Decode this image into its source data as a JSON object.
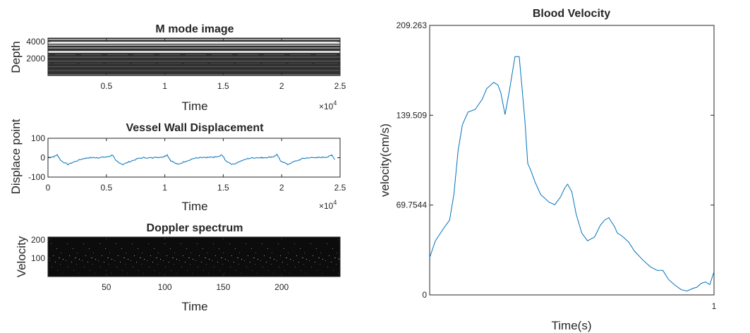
{
  "charts": [
    {
      "title": "M mode image",
      "type": "heatmap",
      "xlabel": "Time",
      "ylabel": "Depth",
      "x_exponent_label": "×10",
      "x_exponent": "4",
      "xticks": [
        "0.5",
        "1",
        "1.5",
        "2",
        "2.5"
      ],
      "xtick_values": [
        0.5,
        1,
        1.5,
        2,
        2.5
      ],
      "xlim": [
        0,
        2.5
      ],
      "yticks": [
        "2000",
        "4000"
      ],
      "ytick_values": [
        2000,
        4000
      ],
      "ylim": [
        0,
        4400
      ],
      "grid": false
    },
    {
      "title": "Vessel Wall Displacement",
      "type": "line",
      "xlabel": "Time",
      "ylabel": "Displace point",
      "x_exponent_label": "×10",
      "x_exponent": "4",
      "xticks": [
        "0",
        "0.5",
        "1",
        "1.5",
        "2",
        "2.5"
      ],
      "xtick_values": [
        0,
        0.5,
        1,
        1.5,
        2,
        2.5
      ],
      "xlim": [
        0,
        2.5
      ],
      "yticks": [
        "100",
        "0",
        "-100"
      ],
      "ytick_values": [
        100,
        0,
        -100
      ],
      "ylim": [
        -100,
        100
      ],
      "line_color": "#0072bd",
      "pattern": {
        "cycle_length": 0.47,
        "first_cycle_start": -0.05,
        "points_in_cycle": [
          [
            0,
            0
          ],
          [
            0.05,
            2
          ],
          [
            0.1,
            5
          ],
          [
            0.13,
            15
          ],
          [
            0.16,
            -15
          ],
          [
            0.22,
            -35
          ],
          [
            0.28,
            -20
          ],
          [
            0.35,
            -5
          ],
          [
            0.4,
            0
          ],
          [
            0.47,
            0
          ]
        ]
      },
      "grid": false
    },
    {
      "title": "Doppler spectrum",
      "type": "heatmap",
      "xlabel": "Time",
      "ylabel": "Velocity",
      "xticks": [
        "50",
        "100",
        "150",
        "200"
      ],
      "xtick_values": [
        50,
        100,
        150,
        200
      ],
      "xlim": [
        0,
        250
      ],
      "yticks": [
        "100",
        "200"
      ],
      "ytick_values": [
        100,
        200
      ],
      "ylim": [
        0,
        215
      ],
      "grid": false
    },
    {
      "title": "Blood Velocity",
      "type": "line",
      "xlabel": "Time(s)",
      "ylabel": "velocity(cm/s)",
      "xticks": [
        "1"
      ],
      "xtick_values": [
        1
      ],
      "xlim": [
        0,
        1
      ],
      "yticks": [
        "0",
        "69.7544",
        "139.509",
        "209.263"
      ],
      "ytick_values": [
        0,
        69.7544,
        139.509,
        209.263
      ],
      "ylim": [
        0,
        209.263
      ],
      "line_color": "#0072bd",
      "x": [
        0,
        0.02,
        0.05,
        0.07,
        0.085,
        0.1,
        0.115,
        0.135,
        0.16,
        0.185,
        0.2,
        0.225,
        0.24,
        0.25,
        0.265,
        0.28,
        0.3,
        0.315,
        0.325,
        0.335,
        0.345,
        0.355,
        0.37,
        0.39,
        0.42,
        0.44,
        0.46,
        0.475,
        0.485,
        0.5,
        0.515,
        0.535,
        0.555,
        0.58,
        0.6,
        0.615,
        0.63,
        0.65,
        0.66,
        0.675,
        0.7,
        0.72,
        0.75,
        0.775,
        0.8,
        0.82,
        0.84,
        0.86,
        0.885,
        0.905,
        0.925,
        0.94,
        0.955,
        0.97,
        0.985,
        1.0
      ],
      "y": [
        29,
        42,
        52,
        58,
        78,
        112,
        132,
        142,
        144,
        152,
        160,
        165,
        163,
        157,
        140,
        158,
        185,
        185,
        160,
        135,
        102,
        97,
        88,
        78,
        72,
        70,
        76,
        83,
        86,
        80,
        63,
        48,
        42,
        45,
        54,
        58,
        60,
        53,
        48,
        46,
        41,
        34,
        27,
        22,
        19,
        19,
        12,
        8,
        4,
        3,
        5,
        6,
        9,
        10,
        8,
        18
      ]
    }
  ]
}
